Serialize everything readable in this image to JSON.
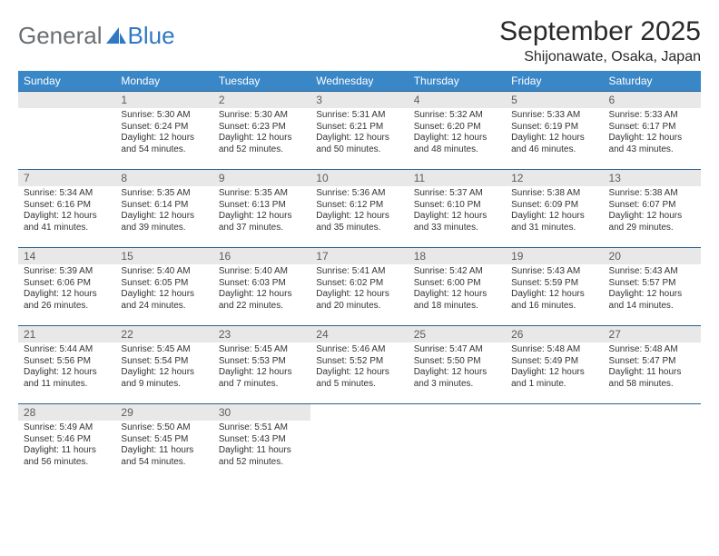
{
  "logo": {
    "text1": "General",
    "text2": "Blue",
    "icon_color": "#2f78c3"
  },
  "header": {
    "month": "September 2025",
    "location": "Shijonawate, Osaka, Japan"
  },
  "style": {
    "header_bg": "#3a87c8",
    "header_text": "#ffffff",
    "rule_color": "#2b5f8f",
    "daynum_bg": "#e8e8e8",
    "body_font_size": 10
  },
  "weekdays": [
    "Sunday",
    "Monday",
    "Tuesday",
    "Wednesday",
    "Thursday",
    "Friday",
    "Saturday"
  ],
  "first_weekday_index": 1,
  "days": [
    {
      "n": 1,
      "sunrise": "5:30 AM",
      "sunset": "6:24 PM",
      "daylight": "12 hours and 54 minutes."
    },
    {
      "n": 2,
      "sunrise": "5:30 AM",
      "sunset": "6:23 PM",
      "daylight": "12 hours and 52 minutes."
    },
    {
      "n": 3,
      "sunrise": "5:31 AM",
      "sunset": "6:21 PM",
      "daylight": "12 hours and 50 minutes."
    },
    {
      "n": 4,
      "sunrise": "5:32 AM",
      "sunset": "6:20 PM",
      "daylight": "12 hours and 48 minutes."
    },
    {
      "n": 5,
      "sunrise": "5:33 AM",
      "sunset": "6:19 PM",
      "daylight": "12 hours and 46 minutes."
    },
    {
      "n": 6,
      "sunrise": "5:33 AM",
      "sunset": "6:17 PM",
      "daylight": "12 hours and 43 minutes."
    },
    {
      "n": 7,
      "sunrise": "5:34 AM",
      "sunset": "6:16 PM",
      "daylight": "12 hours and 41 minutes."
    },
    {
      "n": 8,
      "sunrise": "5:35 AM",
      "sunset": "6:14 PM",
      "daylight": "12 hours and 39 minutes."
    },
    {
      "n": 9,
      "sunrise": "5:35 AM",
      "sunset": "6:13 PM",
      "daylight": "12 hours and 37 minutes."
    },
    {
      "n": 10,
      "sunrise": "5:36 AM",
      "sunset": "6:12 PM",
      "daylight": "12 hours and 35 minutes."
    },
    {
      "n": 11,
      "sunrise": "5:37 AM",
      "sunset": "6:10 PM",
      "daylight": "12 hours and 33 minutes."
    },
    {
      "n": 12,
      "sunrise": "5:38 AM",
      "sunset": "6:09 PM",
      "daylight": "12 hours and 31 minutes."
    },
    {
      "n": 13,
      "sunrise": "5:38 AM",
      "sunset": "6:07 PM",
      "daylight": "12 hours and 29 minutes."
    },
    {
      "n": 14,
      "sunrise": "5:39 AM",
      "sunset": "6:06 PM",
      "daylight": "12 hours and 26 minutes."
    },
    {
      "n": 15,
      "sunrise": "5:40 AM",
      "sunset": "6:05 PM",
      "daylight": "12 hours and 24 minutes."
    },
    {
      "n": 16,
      "sunrise": "5:40 AM",
      "sunset": "6:03 PM",
      "daylight": "12 hours and 22 minutes."
    },
    {
      "n": 17,
      "sunrise": "5:41 AM",
      "sunset": "6:02 PM",
      "daylight": "12 hours and 20 minutes."
    },
    {
      "n": 18,
      "sunrise": "5:42 AM",
      "sunset": "6:00 PM",
      "daylight": "12 hours and 18 minutes."
    },
    {
      "n": 19,
      "sunrise": "5:43 AM",
      "sunset": "5:59 PM",
      "daylight": "12 hours and 16 minutes."
    },
    {
      "n": 20,
      "sunrise": "5:43 AM",
      "sunset": "5:57 PM",
      "daylight": "12 hours and 14 minutes."
    },
    {
      "n": 21,
      "sunrise": "5:44 AM",
      "sunset": "5:56 PM",
      "daylight": "12 hours and 11 minutes."
    },
    {
      "n": 22,
      "sunrise": "5:45 AM",
      "sunset": "5:54 PM",
      "daylight": "12 hours and 9 minutes."
    },
    {
      "n": 23,
      "sunrise": "5:45 AM",
      "sunset": "5:53 PM",
      "daylight": "12 hours and 7 minutes."
    },
    {
      "n": 24,
      "sunrise": "5:46 AM",
      "sunset": "5:52 PM",
      "daylight": "12 hours and 5 minutes."
    },
    {
      "n": 25,
      "sunrise": "5:47 AM",
      "sunset": "5:50 PM",
      "daylight": "12 hours and 3 minutes."
    },
    {
      "n": 26,
      "sunrise": "5:48 AM",
      "sunset": "5:49 PM",
      "daylight": "12 hours and 1 minute."
    },
    {
      "n": 27,
      "sunrise": "5:48 AM",
      "sunset": "5:47 PM",
      "daylight": "11 hours and 58 minutes."
    },
    {
      "n": 28,
      "sunrise": "5:49 AM",
      "sunset": "5:46 PM",
      "daylight": "11 hours and 56 minutes."
    },
    {
      "n": 29,
      "sunrise": "5:50 AM",
      "sunset": "5:45 PM",
      "daylight": "11 hours and 54 minutes."
    },
    {
      "n": 30,
      "sunrise": "5:51 AM",
      "sunset": "5:43 PM",
      "daylight": "11 hours and 52 minutes."
    }
  ],
  "labels": {
    "sunrise": "Sunrise:",
    "sunset": "Sunset:",
    "daylight": "Daylight:"
  }
}
